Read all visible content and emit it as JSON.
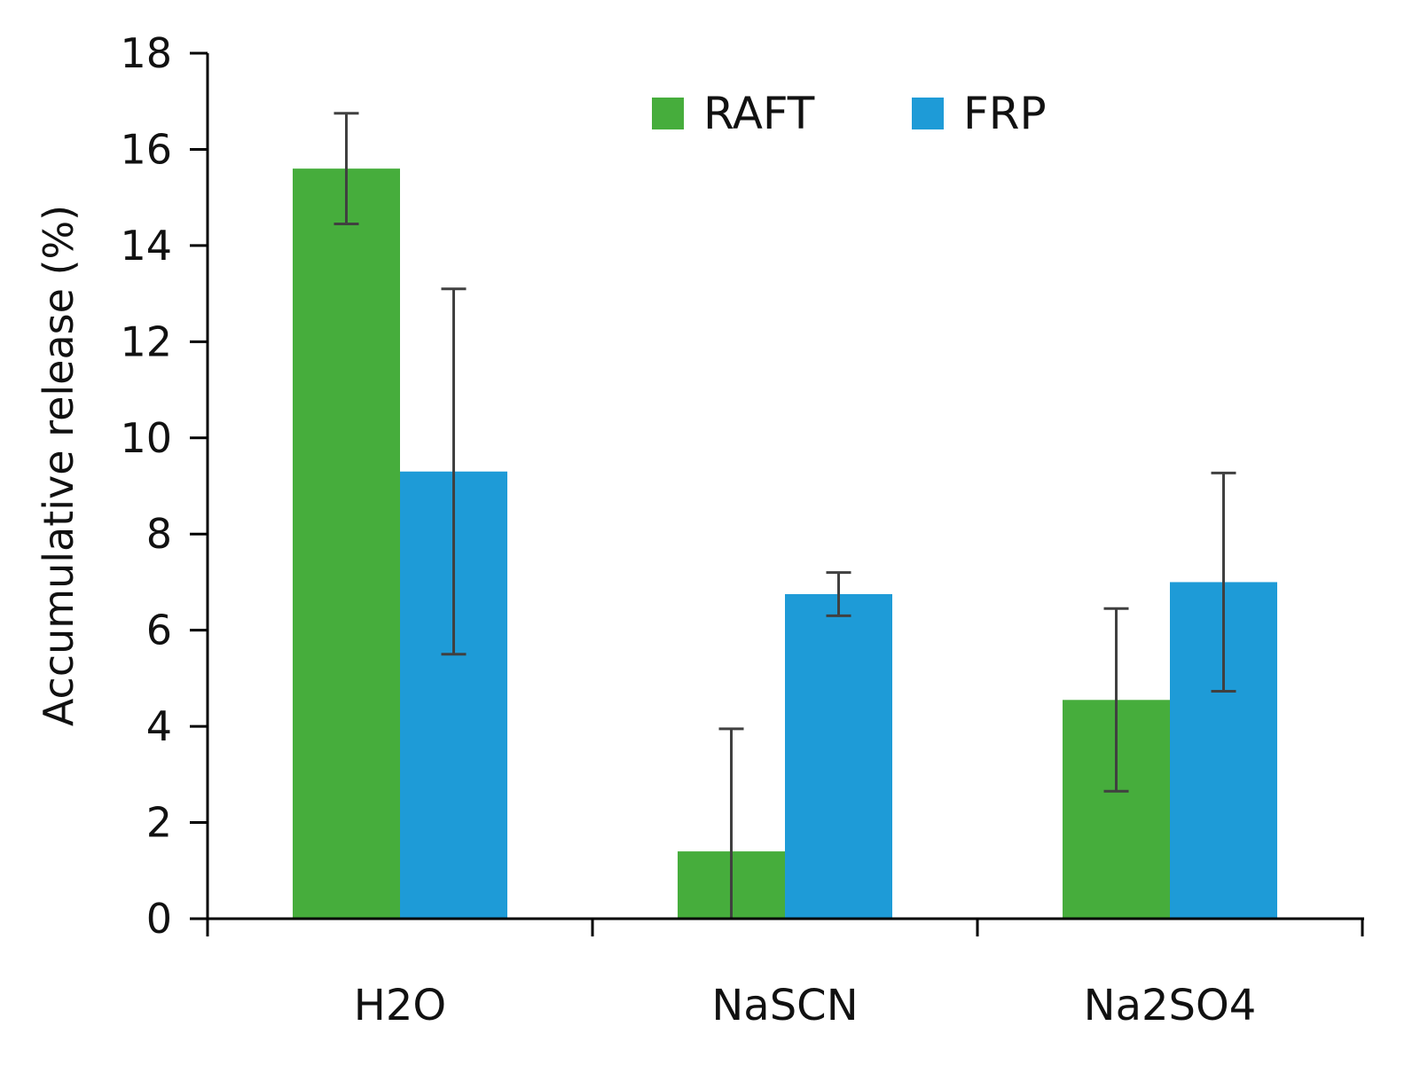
{
  "chart_data": {
    "type": "bar",
    "title": "",
    "xlabel": "",
    "ylabel": "Accumulative release (%)",
    "ylim": [
      0,
      18
    ],
    "yticks": [
      0,
      2,
      4,
      6,
      8,
      10,
      12,
      14,
      16,
      18
    ],
    "categories": [
      "H2O",
      "NaSCN",
      "Na2SO4"
    ],
    "series": [
      {
        "name": "RAFT",
        "color": "#46ad3c",
        "values": [
          15.6,
          1.4,
          4.55
        ],
        "errors": [
          1.15,
          2.55,
          1.9
        ]
      },
      {
        "name": "FRP",
        "color": "#1e9bd7",
        "values": [
          9.3,
          6.75,
          7.0
        ],
        "errors": [
          3.8,
          0.45,
          2.27
        ]
      }
    ],
    "legend_position": "top-right",
    "grid": false
  }
}
